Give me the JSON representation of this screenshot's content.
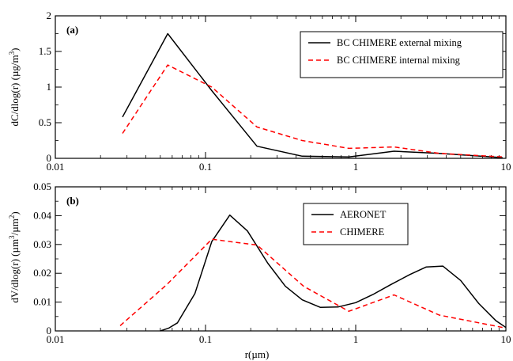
{
  "chart_data": [
    {
      "panel": "(a)",
      "type": "line",
      "xscale": "log",
      "xlim": [
        0.01,
        10
      ],
      "ylim": [
        0,
        2
      ],
      "xticks": [
        0.01,
        0.1,
        1,
        10
      ],
      "xtick_labels": [
        "0.01",
        "0.1",
        "1",
        "10"
      ],
      "yticks": [
        0,
        0.5,
        1,
        1.5,
        2
      ],
      "ytick_labels": [
        "0",
        "0.5",
        "1",
        "1.5",
        "2"
      ],
      "xlabel": "",
      "ylabel": "dC/dlog(r) (µg/m",
      "ylabel_sup": "3",
      "ylabel_tail": ")",
      "grid": false,
      "legend_position": "top-right",
      "series": [
        {
          "name": "BC CHIMERE external mixing",
          "color": "#000000",
          "dash": "solid",
          "x": [
            0.028,
            0.056,
            0.11,
            0.22,
            0.44,
            0.9,
            1.8,
            3.6,
            9.5
          ],
          "y": [
            0.58,
            1.75,
            0.95,
            0.17,
            0.03,
            0.02,
            0.1,
            0.07,
            0.01
          ]
        },
        {
          "name": "BC CHIMERE internal mixing",
          "color": "#ff0000",
          "dash": "dashed",
          "x": [
            0.028,
            0.056,
            0.11,
            0.22,
            0.44,
            0.9,
            1.8,
            3.6,
            9.5
          ],
          "y": [
            0.35,
            1.31,
            1.0,
            0.44,
            0.25,
            0.14,
            0.16,
            0.07,
            0.02
          ]
        }
      ]
    },
    {
      "panel": "(b)",
      "type": "line",
      "xscale": "log",
      "xlim": [
        0.01,
        10
      ],
      "ylim": [
        0,
        0.05
      ],
      "xticks": [
        0.01,
        0.1,
        1,
        10
      ],
      "xtick_labels": [
        "0.01",
        "0.1",
        "1",
        "10"
      ],
      "yticks": [
        0,
        0.01,
        0.02,
        0.03,
        0.04,
        0.05
      ],
      "ytick_labels": [
        "0",
        "0.01",
        "0.02",
        "0.03",
        "0.04",
        "0.05"
      ],
      "xlabel": "r(µm)",
      "ylabel": "dV/dlog(r) (µm",
      "ylabel_sup": "3",
      "ylabel_mid": "/µm",
      "ylabel_sup2": "2",
      "ylabel_tail": ")",
      "grid": false,
      "legend_position": "top-right",
      "series": [
        {
          "name": "AERONET",
          "color": "#000000",
          "dash": "solid",
          "x": [
            0.05,
            0.057,
            0.065,
            0.085,
            0.11,
            0.145,
            0.19,
            0.26,
            0.34,
            0.44,
            0.58,
            0.76,
            1.0,
            1.3,
            1.7,
            2.3,
            2.95,
            3.8,
            5.0,
            6.6,
            8.6,
            10
          ],
          "y": [
            0,
            0.001,
            0.0028,
            0.013,
            0.031,
            0.0402,
            0.0347,
            0.0235,
            0.0155,
            0.0108,
            0.0082,
            0.0083,
            0.0098,
            0.0126,
            0.016,
            0.0196,
            0.0222,
            0.0225,
            0.0175,
            0.0095,
            0.0035,
            0.0012
          ]
        },
        {
          "name": "CHIMERE",
          "color": "#ff0000",
          "dash": "dashed",
          "x": [
            0.027,
            0.055,
            0.11,
            0.22,
            0.45,
            0.9,
            1.8,
            3.6,
            9.5
          ],
          "y": [
            0.0018,
            0.016,
            0.0318,
            0.0298,
            0.0155,
            0.0068,
            0.0125,
            0.0055,
            0.0012
          ]
        }
      ]
    }
  ]
}
